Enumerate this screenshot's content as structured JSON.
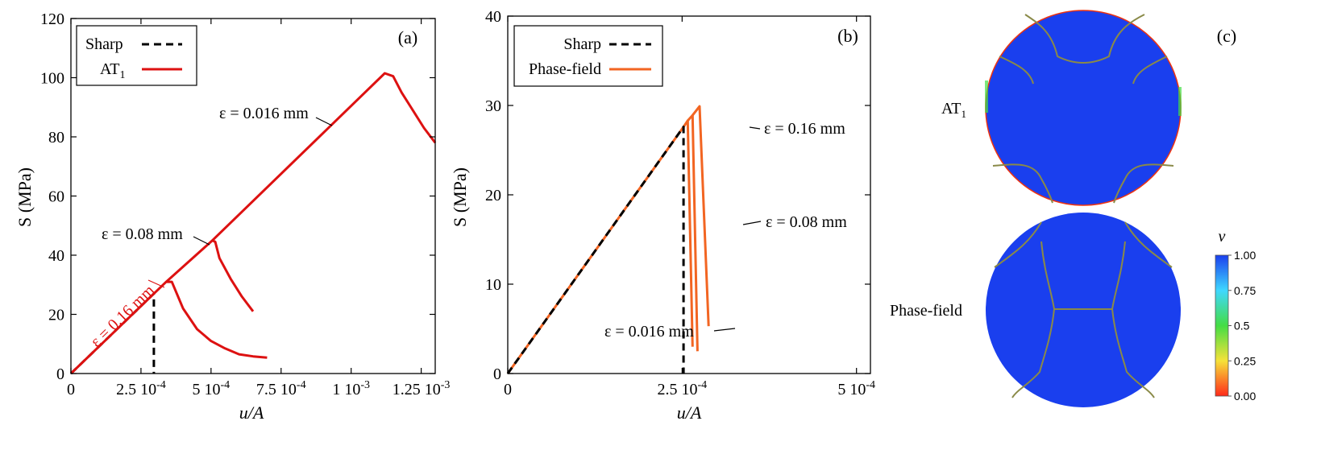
{
  "chart_data": [
    {
      "type": "line",
      "panel": "(a)",
      "xlabel": "u/A",
      "ylabel": "S (MPa)",
      "xlim": [
        0,
        0.0013
      ],
      "ylim": [
        0,
        120
      ],
      "x_ticks": [
        {
          "value": 0,
          "label": "0"
        },
        {
          "value": 0.00025,
          "label": "2.5 10",
          "exp": "-4"
        },
        {
          "value": 0.0005,
          "label": "5 10",
          "exp": "-4"
        },
        {
          "value": 0.00075,
          "label": "7.5 10",
          "exp": "-4"
        },
        {
          "value": 0.001,
          "label": "1 10",
          "exp": "-3"
        },
        {
          "value": 0.00125,
          "label": "1.25 10",
          "exp": "-3"
        }
      ],
      "y_ticks": [
        0,
        20,
        40,
        60,
        80,
        100,
        120
      ],
      "legend": {
        "position": "top-left",
        "entries": [
          {
            "name": "Sharp",
            "color": "#000000",
            "style": "dashed"
          },
          {
            "name": "AT",
            "sub": "1",
            "color": "#dd1111",
            "style": "solid"
          }
        ]
      },
      "series": [
        {
          "name": "Sharp",
          "color": "#000000",
          "style": "dashed",
          "x": [
            0,
            0.000296,
            0.000296
          ],
          "y": [
            0,
            27,
            0
          ]
        },
        {
          "name": "AT1 ε = 0.16 mm",
          "color": "#dd1111",
          "style": "solid",
          "x": [
            0,
            0.00034,
            0.00036,
            0.0004,
            0.00045,
            0.0005,
            0.00055,
            0.0006,
            0.00065,
            0.0007
          ],
          "y": [
            0,
            31,
            31,
            22,
            15,
            11,
            8.5,
            6.5,
            5.8,
            5.4
          ]
        },
        {
          "name": "AT1 ε = 0.08 mm",
          "color": "#dd1111",
          "style": "solid",
          "x": [
            0.00034,
            0.000505,
            0.000515,
            0.00053,
            0.00057,
            0.00061,
            0.00065
          ],
          "y": [
            31,
            45,
            44.5,
            39,
            32,
            26,
            21
          ]
        },
        {
          "name": "AT1 ε = 0.016 mm",
          "color": "#dd1111",
          "style": "solid",
          "x": [
            0.000505,
            0.00112,
            0.00115,
            0.00118,
            0.00122,
            0.00126,
            0.0013
          ],
          "y": [
            45,
            101.5,
            100.5,
            95,
            89,
            83,
            78
          ]
        }
      ],
      "annotations": [
        {
          "text": "ε = 0.016 mm",
          "color": "#000000",
          "at": {
            "x": 0.00087,
            "y": 84
          }
        },
        {
          "text": "ε = 0.08 mm",
          "color": "#000000",
          "at": {
            "x": 0.00048,
            "y": 43
          }
        },
        {
          "text": "ε = 0.16 mm",
          "color": "#dd1111",
          "at": {
            "x": 0.0003,
            "y": 30
          }
        }
      ]
    },
    {
      "type": "line",
      "panel": "(b)",
      "xlabel": "u/A",
      "ylabel": "S (MPa)",
      "xlim": [
        0,
        0.00052
      ],
      "ylim": [
        0,
        40
      ],
      "x_ticks": [
        {
          "value": 0,
          "label": "0"
        },
        {
          "value": 0.00025,
          "label": "2.5 10",
          "exp": "-4"
        },
        {
          "value": 0.0005,
          "label": "5 10",
          "exp": "-4"
        }
      ],
      "y_ticks": [
        0,
        10,
        20,
        30,
        40
      ],
      "legend": {
        "position": "top-left",
        "entries": [
          {
            "name": "Sharp",
            "color": "#000000",
            "style": "dashed"
          },
          {
            "name": "Phase-field",
            "color": "#f26522",
            "style": "solid"
          }
        ]
      },
      "series": [
        {
          "name": "Phase-field ε = 0.016 mm",
          "color": "#f26522",
          "style": "solid",
          "x": [
            0,
            0.000252,
            0.000258,
            0.000265
          ],
          "y": [
            0,
            27.6,
            28.3,
            3
          ]
        },
        {
          "name": "Phase-field ε = 0.08 mm",
          "color": "#f26522",
          "style": "solid",
          "x": [
            0.000258,
            0.000265,
            0.000272
          ],
          "y": [
            28.3,
            28.9,
            2.5
          ]
        },
        {
          "name": "Phase-field ε = 0.16 mm",
          "color": "#f26522",
          "style": "solid",
          "x": [
            0.000265,
            0.000275,
            0.000288
          ],
          "y": [
            28.9,
            29.9,
            5.3
          ]
        },
        {
          "name": "Sharp",
          "color": "#000000",
          "style": "dashed",
          "x": [
            0,
            0.000252,
            0.000252
          ],
          "y": [
            0,
            27.6,
            0
          ]
        }
      ],
      "annotations": [
        {
          "text": "ε = 0.16 mm",
          "color": "#000000",
          "at": {
            "x": 0.000275,
            "y": 28
          }
        },
        {
          "text": "ε = 0.08 mm",
          "color": "#000000",
          "at": {
            "x": 0.000272,
            "y": 16
          }
        },
        {
          "text": "ε = 0.016 mm",
          "color": "#000000",
          "at": {
            "x": 0.000262,
            "y": 4.5
          }
        }
      ]
    }
  ],
  "panel_c": {
    "label": "(c)",
    "row_labels": {
      "top": "AT",
      "top_sub": "1",
      "bottom": "Phase-field"
    },
    "colorbar": {
      "title": "v",
      "ticks": [
        "1.00",
        "0.75",
        "0.5",
        "0.25",
        "0.00"
      ],
      "colors": [
        "#1a3fee",
        "#3fd8ff",
        "#44dd44",
        "#f6e23a",
        "#ff2a1a"
      ]
    },
    "field_color": "#1a3fee",
    "crack_color": "#8a8a48"
  }
}
